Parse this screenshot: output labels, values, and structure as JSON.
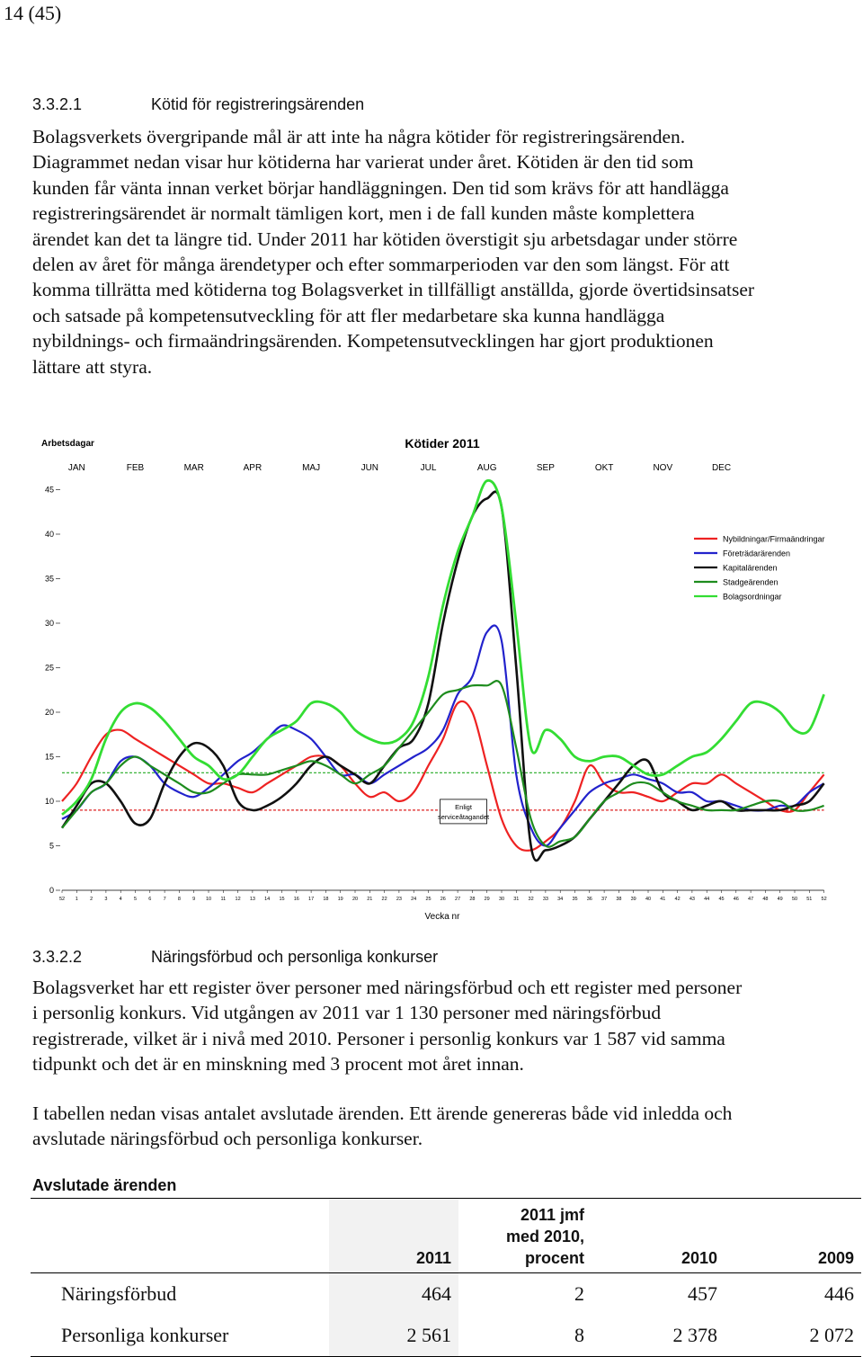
{
  "page_number": "14 (45)",
  "section_1": {
    "number": "3.3.2.1",
    "title": "Kötid för registreringsärenden",
    "lines": [
      "Bolagsverkets övergripande mål är att inte ha några kötider för registreringsärenden.",
      "Diagrammet nedan visar hur kötiderna har varierat under året. Kötiden är den tid som",
      "kunden får vänta innan verket börjar handläggningen. Den tid som krävs för att handlägga",
      "registreringsärendet är normalt tämligen kort, men i de fall kunden måste komplettera",
      "ärendet kan det ta längre tid. Under 2011 har kötiden överstigit sju arbetsdagar under större",
      "delen av året för många ärendetyper och efter sommarperioden var den som längst. För att",
      "komma tillrätta med kötiderna tog Bolagsverket in tillfälligt anställda, gjorde övertidsinsatser",
      "och satsade på kompetensutveckling för att fler medarbetare ska kunna handlägga",
      "nybildnings- och firmaändringsärenden. Kompetensutvecklingen har gjort produktionen",
      "lättare att styra."
    ]
  },
  "chart_data": {
    "type": "line",
    "title": "Kötider 2011",
    "ylabel": "Arbetsdagar",
    "xlabel": "Vecka nr",
    "ylim": [
      0,
      48
    ],
    "yticks": [
      0,
      5,
      10,
      15,
      20,
      25,
      30,
      35,
      40,
      45
    ],
    "x_tick_labels": [
      "52",
      "1",
      "2",
      "3",
      "4",
      "5",
      "6",
      "7",
      "8",
      "9",
      "10",
      "11",
      "12",
      "13",
      "14",
      "15",
      "16",
      "17",
      "18",
      "19",
      "20",
      "21",
      "22",
      "23",
      "24",
      "25",
      "26",
      "27",
      "28",
      "29",
      "30",
      "31",
      "32",
      "33",
      "34",
      "35",
      "36",
      "37",
      "38",
      "39",
      "40",
      "41",
      "42",
      "43",
      "44",
      "45",
      "46",
      "47",
      "48",
      "49",
      "50",
      "51",
      "52"
    ],
    "months": [
      "JAN",
      "FEB",
      "MAR",
      "APR",
      "MAJ",
      "JUN",
      "JUL",
      "AUG",
      "SEP",
      "OKT",
      "NOV",
      "DEC"
    ],
    "month_positions": [
      1,
      5,
      9,
      13,
      17,
      21,
      25,
      29,
      33,
      37,
      41,
      45
    ],
    "threshold_lines": [
      {
        "value": 13.2,
        "color": "#22aa22"
      },
      {
        "value": 9,
        "color": "#dd2222"
      }
    ],
    "annotation": "Enligt serviceåtagandet",
    "annotation_x": 25.8,
    "annotation_y": 9,
    "series": [
      {
        "name": "Nybildningar/Firmaändringar",
        "color": "#ee2222",
        "width": 2.2,
        "values": [
          10,
          12,
          15,
          17.5,
          18,
          17,
          16,
          15,
          14,
          13,
          12,
          12,
          11.5,
          11,
          12,
          13,
          14,
          15,
          15,
          14,
          12,
          10.5,
          11,
          10,
          11,
          14,
          17,
          21,
          20,
          14,
          8,
          5,
          4.5,
          5.5,
          7,
          10,
          14,
          12,
          11,
          11,
          10.5,
          10,
          11,
          12,
          12,
          13,
          12,
          11,
          10,
          9,
          9,
          11,
          13
        ]
      },
      {
        "name": "Företrädarärenden",
        "color": "#2222cc",
        "width": 2.2,
        "values": [
          8,
          9,
          11,
          12,
          14.5,
          15,
          14,
          12,
          11,
          10.5,
          11.5,
          13,
          14.5,
          15.5,
          17,
          18.5,
          18,
          17,
          15,
          13,
          13,
          12,
          13,
          14,
          15,
          16,
          18,
          22,
          24,
          29,
          28,
          13,
          7,
          5,
          7,
          9,
          11,
          12,
          12.5,
          13,
          12.5,
          12,
          11,
          11,
          10,
          10,
          9.5,
          9,
          9,
          9.5,
          9.5,
          11,
          12
        ]
      },
      {
        "name": "Kapitalärenden",
        "color": "#111111",
        "width": 2.6,
        "values": [
          7,
          9.5,
          12,
          12,
          10,
          7.5,
          8,
          12,
          15,
          16.5,
          16,
          14,
          10,
          9,
          9.5,
          10.5,
          12,
          14,
          15,
          14,
          13,
          12,
          14,
          16,
          17,
          21,
          30,
          37,
          42,
          44,
          43,
          25,
          5,
          4.5,
          5,
          6,
          8,
          10,
          12,
          14,
          14.5,
          11,
          10,
          9,
          9.5,
          10,
          9,
          9,
          9,
          9,
          9.5,
          10,
          12
        ]
      },
      {
        "name": "Stadgeärenden",
        "color": "#1e8c1e",
        "width": 2.2,
        "values": [
          7,
          9,
          11,
          12,
          14,
          15,
          14,
          13,
          12,
          11,
          11,
          12,
          13,
          13,
          13,
          13.5,
          14,
          14.5,
          14,
          13,
          12,
          13,
          14,
          16,
          18,
          20,
          22,
          22.5,
          23,
          23,
          23,
          16,
          8,
          5,
          5.5,
          6,
          8,
          10,
          11,
          12,
          12,
          11,
          10,
          9.5,
          9,
          9,
          9,
          9.5,
          10,
          10,
          9,
          9,
          9.5
        ]
      },
      {
        "name": "Bolagsordningar",
        "color": "#33dd33",
        "width": 2.8,
        "values": [
          8.5,
          10,
          12.5,
          17,
          20,
          21,
          20.5,
          19,
          17,
          15,
          14,
          12.5,
          13,
          15,
          17,
          18,
          19,
          21,
          21,
          20,
          18,
          17,
          16.5,
          17,
          19,
          24,
          32,
          38,
          42,
          46,
          43,
          30,
          16,
          18,
          17,
          15,
          14.5,
          15,
          15,
          14,
          13,
          13,
          14,
          15,
          15.5,
          17,
          19,
          21,
          21,
          20,
          18,
          18,
          22
        ]
      }
    ]
  },
  "section_2": {
    "number": "3.3.2.2",
    "title": "Näringsförbud och personliga konkurser",
    "para1": [
      "Bolagsverket har ett register över personer med näringsförbud och ett register med personer",
      "i personlig konkurs. Vid utgången av 2011 var 1 130 personer med näringsförbud",
      "registrerade, vilket är i nivå med 2010. Personer i personlig konkurs var 1 587 vid samma",
      "tidpunkt och det är en minskning med 3 procent mot året innan."
    ],
    "para2": [
      "I tabellen nedan visas antalet avslutade ärenden. Ett ärende genereras både vid inledda och",
      "avslutade näringsförbud och personliga konkurser."
    ]
  },
  "table": {
    "title": "Avslutade ärenden",
    "headers": {
      "c1": "2011",
      "c2": [
        "2011 jmf",
        "med 2010,",
        "procent"
      ],
      "c3": "2010",
      "c4": "2009"
    },
    "rows": [
      {
        "label": "Näringsförbud",
        "v2011": "464",
        "change": "2",
        "v2010": "457",
        "v2009": "446"
      },
      {
        "label": "Personliga konkurser",
        "v2011": "2 561",
        "change": "8",
        "v2010": "2 378",
        "v2009": "2 072"
      }
    ]
  }
}
